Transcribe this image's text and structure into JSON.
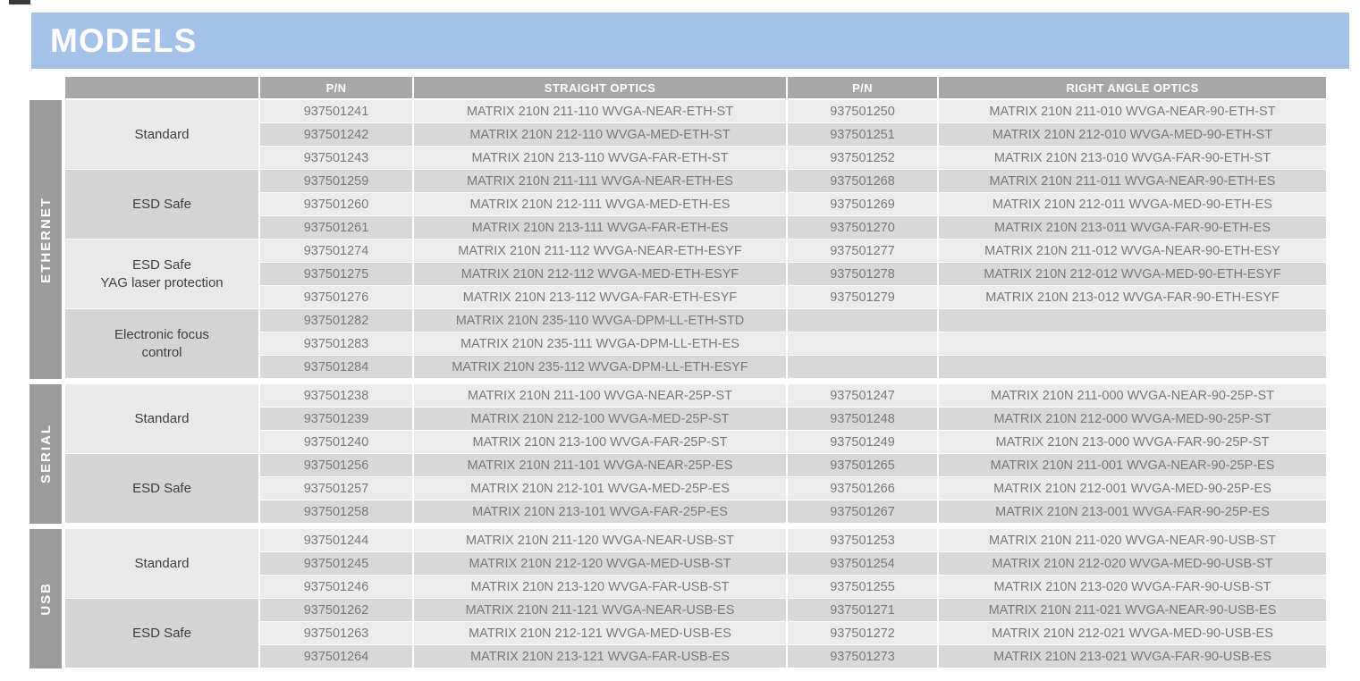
{
  "page": {
    "title": "MODELS"
  },
  "colors": {
    "accent_blue": "#a5c3e8",
    "header_gray": "#a7a7a7",
    "sidebar_gray": "#9c9c9c",
    "row_light": "#ececec",
    "row_dark": "#d8d8d8",
    "group_light": "#e9e9e9",
    "group_dark": "#d4d4d4"
  },
  "table": {
    "headers": {
      "group": "",
      "pn1": "P/N",
      "straight": "STRAIGHT OPTICS",
      "pn2": "P/N",
      "right_angle": "RIGHT ANGLE OPTICS"
    },
    "sections": [
      {
        "label": "ETHERNET",
        "groups": [
          {
            "label": "Standard",
            "rows": [
              {
                "pn1": "937501241",
                "straight": "MATRIX 210N 211-110 WVGA-NEAR-ETH-ST",
                "pn2": "937501250",
                "right_angle": "MATRIX 210N 211-010 WVGA-NEAR-90-ETH-ST"
              },
              {
                "pn1": "937501242",
                "straight": "MATRIX 210N 212-110 WVGA-MED-ETH-ST",
                "pn2": "937501251",
                "right_angle": "MATRIX 210N 212-010 WVGA-MED-90-ETH-ST"
              },
              {
                "pn1": "937501243",
                "straight": "MATRIX 210N 213-110 WVGA-FAR-ETH-ST",
                "pn2": "937501252",
                "right_angle": "MATRIX 210N 213-010 WVGA-FAR-90-ETH-ST"
              }
            ]
          },
          {
            "label": "ESD Safe",
            "rows": [
              {
                "pn1": "937501259",
                "straight": "MATRIX 210N 211-111 WVGA-NEAR-ETH-ES",
                "pn2": "937501268",
                "right_angle": "MATRIX 210N 211-011 WVGA-NEAR-90-ETH-ES"
              },
              {
                "pn1": "937501260",
                "straight": "MATRIX 210N 212-111 WVGA-MED-ETH-ES",
                "pn2": "937501269",
                "right_angle": "MATRIX 210N 212-011 WVGA-MED-90-ETH-ES"
              },
              {
                "pn1": "937501261",
                "straight": "MATRIX 210N 213-111 WVGA-FAR-ETH-ES",
                "pn2": "937501270",
                "right_angle": "MATRIX 210N 213-011 WVGA-FAR-90-ETH-ES"
              }
            ]
          },
          {
            "label": "ESD Safe\nYAG laser protection",
            "rows": [
              {
                "pn1": "937501274",
                "straight": "MATRIX 210N 211-112 WVGA-NEAR-ETH-ESYF",
                "pn2": "937501277",
                "right_angle": "MATRIX 210N 211-012 WVGA-NEAR-90-ETH-ESY"
              },
              {
                "pn1": "937501275",
                "straight": "MATRIX 210N 212-112 WVGA-MED-ETH-ESYF",
                "pn2": "937501278",
                "right_angle": "MATRIX 210N 212-012 WVGA-MED-90-ETH-ESYF"
              },
              {
                "pn1": "937501276",
                "straight": "MATRIX 210N 213-112 WVGA-FAR-ETH-ESYF",
                "pn2": "937501279",
                "right_angle": "MATRIX 210N 213-012 WVGA-FAR-90-ETH-ESYF"
              }
            ]
          },
          {
            "label": "Electronic focus\ncontrol",
            "rows": [
              {
                "pn1": "937501282",
                "straight": "MATRIX 210N 235-110 WVGA-DPM-LL-ETH-STD",
                "pn2": "",
                "right_angle": ""
              },
              {
                "pn1": "937501283",
                "straight": "MATRIX 210N 235-111 WVGA-DPM-LL-ETH-ES",
                "pn2": "",
                "right_angle": ""
              },
              {
                "pn1": "937501284",
                "straight": "MATRIX 210N 235-112 WVGA-DPM-LL-ETH-ESYF",
                "pn2": "",
                "right_angle": ""
              }
            ]
          }
        ]
      },
      {
        "label": "SERIAL",
        "groups": [
          {
            "label": "Standard",
            "rows": [
              {
                "pn1": "937501238",
                "straight": "MATRIX 210N 211-100 WVGA-NEAR-25P-ST",
                "pn2": "937501247",
                "right_angle": "MATRIX 210N 211-000 WVGA-NEAR-90-25P-ST"
              },
              {
                "pn1": "937501239",
                "straight": "MATRIX 210N 212-100 WVGA-MED-25P-ST",
                "pn2": "937501248",
                "right_angle": "MATRIX 210N 212-000 WVGA-MED-90-25P-ST"
              },
              {
                "pn1": "937501240",
                "straight": "MATRIX 210N 213-100 WVGA-FAR-25P-ST",
                "pn2": "937501249",
                "right_angle": "MATRIX 210N 213-000 WVGA-FAR-90-25P-ST"
              }
            ]
          },
          {
            "label": "ESD Safe",
            "rows": [
              {
                "pn1": "937501256",
                "straight": "MATRIX 210N 211-101 WVGA-NEAR-25P-ES",
                "pn2": "937501265",
                "right_angle": "MATRIX 210N 211-001 WVGA-NEAR-90-25P-ES"
              },
              {
                "pn1": "937501257",
                "straight": "MATRIX 210N 212-101 WVGA-MED-25P-ES",
                "pn2": "937501266",
                "right_angle": "MATRIX 210N 212-001 WVGA-MED-90-25P-ES"
              },
              {
                "pn1": "937501258",
                "straight": "MATRIX 210N 213-101 WVGA-FAR-25P-ES",
                "pn2": "937501267",
                "right_angle": "MATRIX 210N 213-001 WVGA-FAR-90-25P-ES"
              }
            ]
          }
        ]
      },
      {
        "label": "USB",
        "groups": [
          {
            "label": "Standard",
            "rows": [
              {
                "pn1": "937501244",
                "straight": "MATRIX 210N 211-120 WVGA-NEAR-USB-ST",
                "pn2": "937501253",
                "right_angle": "MATRIX 210N 211-020 WVGA-NEAR-90-USB-ST"
              },
              {
                "pn1": "937501245",
                "straight": "MATRIX 210N 212-120 WVGA-MED-USB-ST",
                "pn2": "937501254",
                "right_angle": "MATRIX 210N 212-020 WVGA-MED-90-USB-ST"
              },
              {
                "pn1": "937501246",
                "straight": "MATRIX 210N 213-120 WVGA-FAR-USB-ST",
                "pn2": "937501255",
                "right_angle": "MATRIX 210N 213-020 WVGA-FAR-90-USB-ST"
              }
            ]
          },
          {
            "label": "ESD Safe",
            "rows": [
              {
                "pn1": "937501262",
                "straight": "MATRIX 210N 211-121 WVGA-NEAR-USB-ES",
                "pn2": "937501271",
                "right_angle": "MATRIX 210N 211-021 WVGA-NEAR-90-USB-ES"
              },
              {
                "pn1": "937501263",
                "straight": "MATRIX 210N 212-121 WVGA-MED-USB-ES",
                "pn2": "937501272",
                "right_angle": "MATRIX 210N 212-021 WVGA-MED-90-USB-ES"
              },
              {
                "pn1": "937501264",
                "straight": "MATRIX 210N 213-121 WVGA-FAR-USB-ES",
                "pn2": "937501273",
                "right_angle": "MATRIX 210N 213-021 WVGA-FAR-90-USB-ES"
              }
            ]
          }
        ]
      }
    ]
  }
}
